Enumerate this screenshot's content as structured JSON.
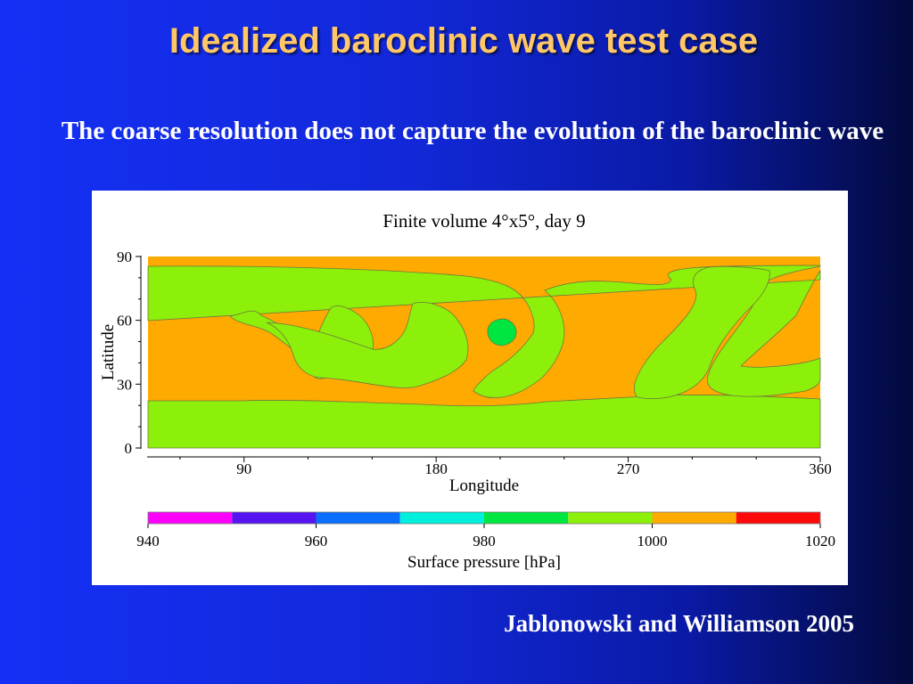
{
  "slide": {
    "title": "Idealized baroclinic wave test case",
    "subtitle": "The coarse resolution does not capture the evolution of the baroclinic wave",
    "citation": "Jablonowski and Williamson 2005"
  },
  "chart_data": {
    "type": "heatmap",
    "title": "Finite volume 4°x5°, day 9",
    "xlabel": "Longitude",
    "ylabel": "Latitude",
    "xlim": [
      45,
      360
    ],
    "ylim": [
      0,
      90
    ],
    "x_ticks": [
      "90",
      "180",
      "270",
      "360"
    ],
    "y_ticks": [
      "0",
      "30",
      "60",
      "90"
    ],
    "colorbar": {
      "label": "Surface pressure [hPa]",
      "tick_labels": [
        "940",
        "960",
        "980",
        "1000",
        "1020"
      ],
      "range": [
        940,
        1020
      ],
      "bins": [
        {
          "from": 940,
          "to": 950,
          "color": "#ff00ff"
        },
        {
          "from": 950,
          "to": 960,
          "color": "#5514f0"
        },
        {
          "from": 960,
          "to": 970,
          "color": "#0a6eff"
        },
        {
          "from": 970,
          "to": 980,
          "color": "#00f0dc"
        },
        {
          "from": 980,
          "to": 990,
          "color": "#00e641"
        },
        {
          "from": 990,
          "to": 1000,
          "color": "#8cf00a"
        },
        {
          "from": 1000,
          "to": 1010,
          "color": "#ffaa00"
        },
        {
          "from": 1010,
          "to": 1020,
          "color": "#ff0a0a"
        }
      ]
    },
    "regions": [
      {
        "name": "background",
        "color": "#ffaa00"
      },
      {
        "name": "southern-low-band",
        "color": "#8cf00a"
      },
      {
        "name": "northern-low-band",
        "color": "#8cf00a"
      },
      {
        "name": "trough-1",
        "color": "#8cf00a"
      },
      {
        "name": "trough-2",
        "color": "#8cf00a"
      },
      {
        "name": "eastern-trough",
        "color": "#8cf00a"
      },
      {
        "name": "low-center",
        "color": "#00e641"
      }
    ]
  }
}
